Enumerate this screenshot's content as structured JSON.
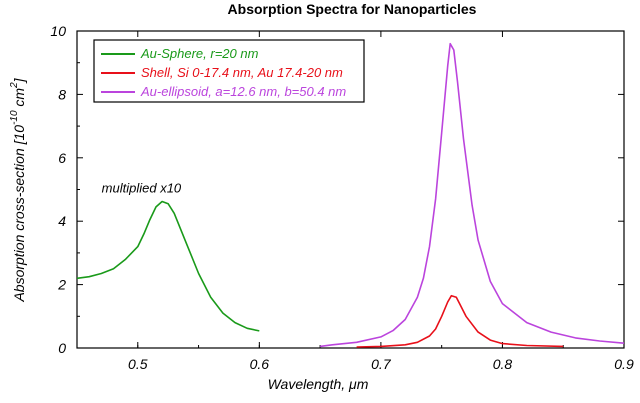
{
  "chart_data": {
    "type": "line",
    "title": "Absorption Spectra for Nanoparticles",
    "xlabel": "Wavelength, μm",
    "ylabel": "Absorption cross-section [10",
    "ylabel_exp": "-10",
    "ylabel_unit": " cm",
    "ylabel_unit_exp": "2",
    "ylabel_close": "]",
    "xlim": [
      0.45,
      0.9
    ],
    "ylim": [
      0,
      10
    ],
    "x_ticks": [
      "0.5",
      "0.6",
      "0.7",
      "0.8",
      "0.9"
    ],
    "y_ticks": [
      "0",
      "2",
      "4",
      "6",
      "8",
      "10"
    ],
    "grid": false,
    "legend_position": "top-left",
    "annotations": [
      {
        "text": "multiplied x10",
        "x": 0.503,
        "y": 4.9
      }
    ],
    "series": [
      {
        "name": "Au-Sphere, r=20 nm",
        "color": "#1a9a1a",
        "points": [
          [
            0.45,
            2.2
          ],
          [
            0.46,
            2.25
          ],
          [
            0.47,
            2.35
          ],
          [
            0.48,
            2.5
          ],
          [
            0.49,
            2.8
          ],
          [
            0.5,
            3.2
          ],
          [
            0.505,
            3.6
          ],
          [
            0.51,
            4.05
          ],
          [
            0.515,
            4.45
          ],
          [
            0.52,
            4.62
          ],
          [
            0.525,
            4.55
          ],
          [
            0.53,
            4.25
          ],
          [
            0.54,
            3.3
          ],
          [
            0.55,
            2.35
          ],
          [
            0.56,
            1.6
          ],
          [
            0.57,
            1.1
          ],
          [
            0.58,
            0.8
          ],
          [
            0.59,
            0.62
          ],
          [
            0.6,
            0.54
          ]
        ]
      },
      {
        "name": "Shell, Si 0-17.4 nm, Au 17.4-20 nm",
        "color": "#e8101a",
        "points": [
          [
            0.68,
            0.03
          ],
          [
            0.7,
            0.05
          ],
          [
            0.72,
            0.1
          ],
          [
            0.73,
            0.18
          ],
          [
            0.74,
            0.38
          ],
          [
            0.745,
            0.6
          ],
          [
            0.75,
            1.0
          ],
          [
            0.755,
            1.45
          ],
          [
            0.758,
            1.65
          ],
          [
            0.762,
            1.6
          ],
          [
            0.765,
            1.38
          ],
          [
            0.77,
            1.0
          ],
          [
            0.78,
            0.5
          ],
          [
            0.79,
            0.25
          ],
          [
            0.8,
            0.14
          ],
          [
            0.82,
            0.08
          ],
          [
            0.85,
            0.05
          ]
        ]
      },
      {
        "name": "Au-ellipsoid, a=12.6 nm, b=50.4 nm",
        "color": "#bb44dd",
        "points": [
          [
            0.65,
            0.05
          ],
          [
            0.66,
            0.1
          ],
          [
            0.68,
            0.18
          ],
          [
            0.7,
            0.35
          ],
          [
            0.71,
            0.55
          ],
          [
            0.72,
            0.9
          ],
          [
            0.73,
            1.6
          ],
          [
            0.735,
            2.2
          ],
          [
            0.74,
            3.2
          ],
          [
            0.745,
            4.7
          ],
          [
            0.75,
            6.8
          ],
          [
            0.755,
            8.9
          ],
          [
            0.757,
            9.6
          ],
          [
            0.76,
            9.4
          ],
          [
            0.763,
            8.4
          ],
          [
            0.768,
            6.6
          ],
          [
            0.775,
            4.5
          ],
          [
            0.78,
            3.4
          ],
          [
            0.79,
            2.1
          ],
          [
            0.8,
            1.4
          ],
          [
            0.82,
            0.8
          ],
          [
            0.84,
            0.5
          ],
          [
            0.86,
            0.32
          ],
          [
            0.88,
            0.22
          ],
          [
            0.9,
            0.15
          ]
        ]
      }
    ]
  }
}
